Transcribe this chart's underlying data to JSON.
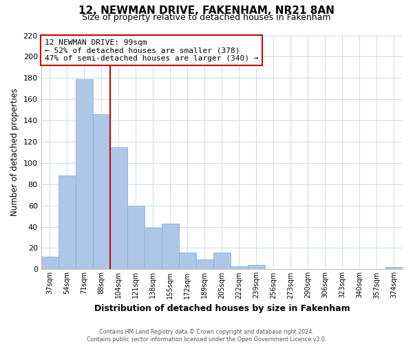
{
  "title": "12, NEWMAN DRIVE, FAKENHAM, NR21 8AN",
  "subtitle": "Size of property relative to detached houses in Fakenham",
  "xlabel": "Distribution of detached houses by size in Fakenham",
  "ylabel": "Number of detached properties",
  "bar_labels": [
    "37sqm",
    "54sqm",
    "71sqm",
    "88sqm",
    "104sqm",
    "121sqm",
    "138sqm",
    "155sqm",
    "172sqm",
    "189sqm",
    "205sqm",
    "222sqm",
    "239sqm",
    "256sqm",
    "273sqm",
    "290sqm",
    "306sqm",
    "323sqm",
    "340sqm",
    "357sqm",
    "374sqm"
  ],
  "bar_values": [
    12,
    88,
    179,
    146,
    115,
    60,
    39,
    43,
    16,
    9,
    16,
    3,
    4,
    0,
    0,
    0,
    0,
    0,
    0,
    0,
    2
  ],
  "bar_color": "#aec6e8",
  "bar_edge_color": "#8ab4d8",
  "vline_x_index": 3.5,
  "vline_color": "#cc0000",
  "annotation_title": "12 NEWMAN DRIVE: 99sqm",
  "annotation_line1": "← 52% of detached houses are smaller (378)",
  "annotation_line2": "47% of semi-detached houses are larger (340) →",
  "annotation_box_edge": "#cc0000",
  "ylim": [
    0,
    220
  ],
  "yticks": [
    0,
    20,
    40,
    60,
    80,
    100,
    120,
    140,
    160,
    180,
    200,
    220
  ],
  "footer1": "Contains HM Land Registry data © Crown copyright and database right 2024.",
  "footer2": "Contains public sector information licensed under the Open Government Licence v3.0.",
  "background_color": "#ffffff",
  "grid_color": "#ccd9e8"
}
